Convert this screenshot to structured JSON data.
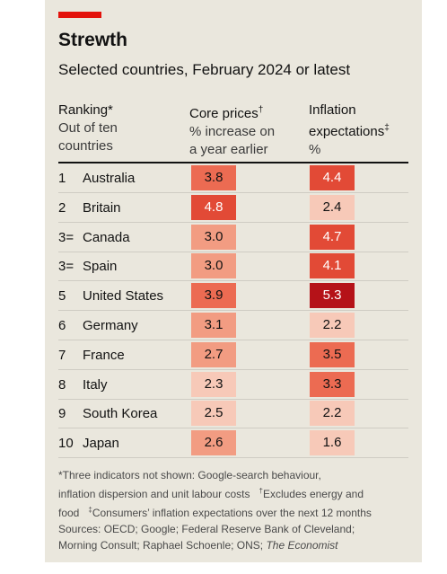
{
  "chart_data": {
    "type": "table",
    "title": "Strewth",
    "subtitle": "Selected countries, February 2024 or latest",
    "columns": [
      {
        "title": "Ranking*",
        "subtitle_lines": [
          "Out of ten",
          "countries"
        ]
      },
      {
        "title": "Core prices",
        "mark": "†",
        "subtitle_lines": [
          "% increase on",
          "a year earlier"
        ]
      },
      {
        "title": "Inflation",
        "title2": "expectations",
        "mark": "‡",
        "subtitle_lines": [
          "%"
        ]
      }
    ],
    "rows": [
      {
        "rank": "1",
        "country": "Australia",
        "core": 3.8,
        "core_label": "3.8",
        "inflation": 4.4,
        "inflation_label": "4.4"
      },
      {
        "rank": "2",
        "country": "Britain",
        "core": 4.8,
        "core_label": "4.8",
        "inflation": 2.4,
        "inflation_label": "2.4"
      },
      {
        "rank": "3=",
        "country": "Canada",
        "core": 3.0,
        "core_label": "3.0",
        "inflation": 4.7,
        "inflation_label": "4.7"
      },
      {
        "rank": "3=",
        "country": "Spain",
        "core": 3.0,
        "core_label": "3.0",
        "inflation": 4.1,
        "inflation_label": "4.1"
      },
      {
        "rank": "5",
        "country": "United States",
        "core": 3.9,
        "core_label": "3.9",
        "inflation": 5.3,
        "inflation_label": "5.3"
      },
      {
        "rank": "6",
        "country": "Germany",
        "core": 3.1,
        "core_label": "3.1",
        "inflation": 2.2,
        "inflation_label": "2.2"
      },
      {
        "rank": "7",
        "country": "France",
        "core": 2.7,
        "core_label": "2.7",
        "inflation": 3.5,
        "inflation_label": "3.5"
      },
      {
        "rank": "8",
        "country": "Italy",
        "core": 2.3,
        "core_label": "2.3",
        "inflation": 3.3,
        "inflation_label": "3.3"
      },
      {
        "rank": "9",
        "country": "South Korea",
        "core": 2.5,
        "core_label": "2.5",
        "inflation": 2.2,
        "inflation_label": "2.2"
      },
      {
        "rank": "10",
        "country": "Japan",
        "core": 2.6,
        "core_label": "2.6",
        "inflation": 1.6,
        "inflation_label": "1.6"
      }
    ],
    "footnote": {
      "line1": "*Three indicators not shown: Google-search behaviour,",
      "line2a": "inflation dispersion and unit labour costs",
      "line2_mark": "†",
      "line2b": "Excludes energy and",
      "line3a": "food",
      "line3_mark": "‡",
      "line3b": "Consumers’ inflation expectations over the next 12 months",
      "line4": "Sources: OECD; Google; Federal Reserve Bank of Cleveland;",
      "line5a": "Morning Consult; Raphael Schoenle; ONS;",
      "line5b": "The Economist"
    }
  },
  "colors": {
    "background": "#eae7dd",
    "brand_red": "#e3120b",
    "heat_scale": [
      "#f7c9b8",
      "#f29c82",
      "#ec6b52",
      "#e24a36",
      "#b51218"
    ]
  }
}
